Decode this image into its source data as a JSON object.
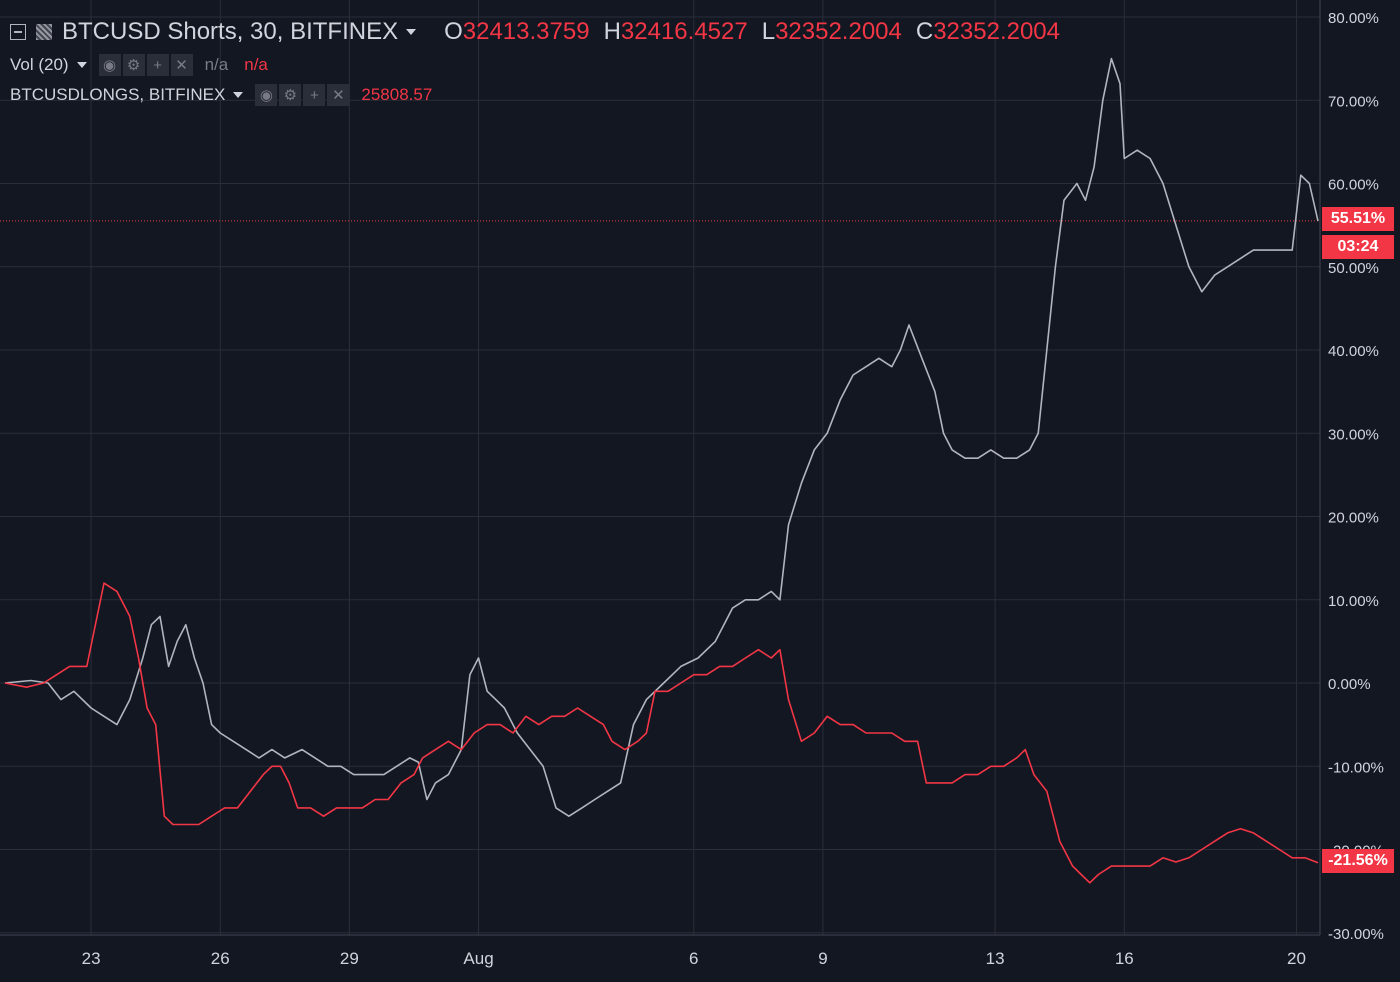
{
  "legend": {
    "symbol": "BTCUSD Shorts, 30, BITFINEX",
    "open_label": "O",
    "open": "32413.3759",
    "high_label": "H",
    "high": "32416.4527",
    "low_label": "L",
    "low": "32352.2004",
    "close_label": "C",
    "close": "32352.2004",
    "vol_label": "Vol (20)",
    "vol_value": "n/a",
    "vol_value2": "n/a",
    "longs_label": "BTCUSDLONGS, BITFINEX",
    "longs_value": "25808.57"
  },
  "badges": {
    "shorts_value": "55.51%",
    "countdown": "03:24",
    "longs_value": "-21.56%"
  },
  "icons": {
    "collapse": "minus-square-icon",
    "symbol": "symbol-hatch-icon",
    "dropdown": "caret-down-icon",
    "eye": "eye-icon",
    "gear": "gear-icon",
    "plus": "plus-icon",
    "close": "close-icon"
  },
  "colors": {
    "background": "#131722",
    "grid": "#2a2e39",
    "shorts_series": "#b2b5be",
    "longs_series": "#f23645",
    "text": "#d1d4dc"
  },
  "chart_data": {
    "type": "line",
    "x_unit": "trading days from first tick (23 = day 2)",
    "x_ticks": [
      {
        "label": "23",
        "x": 2
      },
      {
        "label": "26",
        "x": 5
      },
      {
        "label": "29",
        "x": 8
      },
      {
        "label": "Aug",
        "x": 11
      },
      {
        "label": "6",
        "x": 16
      },
      {
        "label": "9",
        "x": 19
      },
      {
        "label": "13",
        "x": 23
      },
      {
        "label": "16",
        "x": 26
      },
      {
        "label": "20",
        "x": 30
      }
    ],
    "y_ticks": [
      "80.00%",
      "70.00%",
      "60.00%",
      "50.00%",
      "40.00%",
      "30.00%",
      "20.00%",
      "10.00%",
      "0.00%",
      "-10.00%",
      "-20.00%",
      "-30.00%"
    ],
    "y_tick_values": [
      80,
      70,
      60,
      50,
      40,
      30,
      20,
      10,
      0,
      -10,
      -20,
      -30
    ],
    "ylim": [
      -30,
      80
    ],
    "xlim": [
      0,
      31
    ],
    "grid": true,
    "scale": "percent",
    "series": [
      {
        "name": "BTCUSD Shorts",
        "points": [
          [
            0,
            0
          ],
          [
            0.6,
            0.3
          ],
          [
            1.0,
            0
          ],
          [
            1.3,
            -2
          ],
          [
            1.6,
            -1
          ],
          [
            2.0,
            -3
          ],
          [
            2.3,
            -4
          ],
          [
            2.6,
            -5
          ],
          [
            2.9,
            -2
          ],
          [
            3.2,
            3
          ],
          [
            3.4,
            7
          ],
          [
            3.6,
            8
          ],
          [
            3.8,
            2
          ],
          [
            4.0,
            5
          ],
          [
            4.2,
            7
          ],
          [
            4.4,
            3
          ],
          [
            4.6,
            0
          ],
          [
            4.8,
            -5
          ],
          [
            5.0,
            -6
          ],
          [
            5.3,
            -7
          ],
          [
            5.6,
            -8
          ],
          [
            5.9,
            -9
          ],
          [
            6.2,
            -8
          ],
          [
            6.5,
            -9
          ],
          [
            6.9,
            -8
          ],
          [
            7.2,
            -9
          ],
          [
            7.5,
            -10
          ],
          [
            7.8,
            -10
          ],
          [
            8.1,
            -11
          ],
          [
            8.4,
            -11
          ],
          [
            8.8,
            -11
          ],
          [
            9.1,
            -10
          ],
          [
            9.4,
            -9
          ],
          [
            9.6,
            -9.5
          ],
          [
            9.8,
            -14
          ],
          [
            10.0,
            -12
          ],
          [
            10.3,
            -11
          ],
          [
            10.6,
            -8
          ],
          [
            10.8,
            1
          ],
          [
            11.0,
            3
          ],
          [
            11.2,
            -1
          ],
          [
            11.4,
            -2
          ],
          [
            11.6,
            -3
          ],
          [
            11.9,
            -6
          ],
          [
            12.2,
            -8
          ],
          [
            12.5,
            -10
          ],
          [
            12.8,
            -15
          ],
          [
            13.1,
            -16
          ],
          [
            13.4,
            -15
          ],
          [
            13.7,
            -14
          ],
          [
            14.0,
            -13
          ],
          [
            14.3,
            -12
          ],
          [
            14.6,
            -5
          ],
          [
            14.9,
            -2
          ],
          [
            15.3,
            0
          ],
          [
            15.7,
            2
          ],
          [
            16.1,
            3
          ],
          [
            16.5,
            5
          ],
          [
            16.9,
            9
          ],
          [
            17.2,
            10
          ],
          [
            17.5,
            10
          ],
          [
            17.8,
            11
          ],
          [
            18.0,
            10
          ],
          [
            18.2,
            19
          ],
          [
            18.5,
            24
          ],
          [
            18.8,
            28
          ],
          [
            19.1,
            30
          ],
          [
            19.4,
            34
          ],
          [
            19.7,
            37
          ],
          [
            20.0,
            38
          ],
          [
            20.3,
            39
          ],
          [
            20.6,
            38
          ],
          [
            20.8,
            40
          ],
          [
            21.0,
            43
          ],
          [
            21.3,
            39
          ],
          [
            21.6,
            35
          ],
          [
            21.8,
            30
          ],
          [
            22.0,
            28
          ],
          [
            22.3,
            27
          ],
          [
            22.6,
            27
          ],
          [
            22.9,
            28
          ],
          [
            23.2,
            27
          ],
          [
            23.5,
            27
          ],
          [
            23.8,
            28
          ],
          [
            24.0,
            30
          ],
          [
            24.2,
            40
          ],
          [
            24.4,
            50
          ],
          [
            24.6,
            58
          ],
          [
            24.9,
            60
          ],
          [
            25.1,
            58
          ],
          [
            25.3,
            62
          ],
          [
            25.5,
            70
          ],
          [
            25.7,
            75
          ],
          [
            25.9,
            72
          ],
          [
            26.0,
            63
          ],
          [
            26.3,
            64
          ],
          [
            26.6,
            63
          ],
          [
            26.9,
            60
          ],
          [
            27.2,
            55
          ],
          [
            27.5,
            50
          ],
          [
            27.8,
            47
          ],
          [
            28.1,
            49
          ],
          [
            28.4,
            50
          ],
          [
            28.7,
            51
          ],
          [
            29.0,
            52
          ],
          [
            29.3,
            52
          ],
          [
            29.6,
            52
          ],
          [
            29.9,
            52
          ],
          [
            30.1,
            61
          ],
          [
            30.3,
            60
          ],
          [
            30.5,
            55.5
          ]
        ]
      },
      {
        "name": "BTCUSDLONGS, BITFINEX",
        "points": [
          [
            0,
            0
          ],
          [
            0.5,
            -0.5
          ],
          [
            0.9,
            0
          ],
          [
            1.2,
            1
          ],
          [
            1.5,
            2
          ],
          [
            1.9,
            2
          ],
          [
            2.1,
            7
          ],
          [
            2.3,
            12
          ],
          [
            2.6,
            11
          ],
          [
            2.9,
            8
          ],
          [
            3.1,
            3
          ],
          [
            3.3,
            -3
          ],
          [
            3.5,
            -5
          ],
          [
            3.7,
            -16
          ],
          [
            3.9,
            -17
          ],
          [
            4.2,
            -17
          ],
          [
            4.5,
            -17
          ],
          [
            4.8,
            -16
          ],
          [
            5.1,
            -15
          ],
          [
            5.4,
            -15
          ],
          [
            5.7,
            -13
          ],
          [
            6.0,
            -11
          ],
          [
            6.2,
            -10
          ],
          [
            6.4,
            -10
          ],
          [
            6.6,
            -12
          ],
          [
            6.8,
            -15
          ],
          [
            7.1,
            -15
          ],
          [
            7.4,
            -16
          ],
          [
            7.7,
            -15
          ],
          [
            8.0,
            -15
          ],
          [
            8.3,
            -15
          ],
          [
            8.6,
            -14
          ],
          [
            8.9,
            -14
          ],
          [
            9.2,
            -12
          ],
          [
            9.5,
            -11
          ],
          [
            9.7,
            -9
          ],
          [
            10.0,
            -8
          ],
          [
            10.3,
            -7
          ],
          [
            10.6,
            -8
          ],
          [
            10.9,
            -6
          ],
          [
            11.2,
            -5
          ],
          [
            11.5,
            -5
          ],
          [
            11.8,
            -6
          ],
          [
            12.1,
            -4
          ],
          [
            12.4,
            -5
          ],
          [
            12.7,
            -4
          ],
          [
            13.0,
            -4
          ],
          [
            13.3,
            -3
          ],
          [
            13.6,
            -4
          ],
          [
            13.9,
            -5
          ],
          [
            14.1,
            -7
          ],
          [
            14.4,
            -8
          ],
          [
            14.7,
            -7
          ],
          [
            14.9,
            -6
          ],
          [
            15.1,
            -1
          ],
          [
            15.4,
            -1
          ],
          [
            15.7,
            0
          ],
          [
            16.0,
            1
          ],
          [
            16.3,
            1
          ],
          [
            16.6,
            2
          ],
          [
            16.9,
            2
          ],
          [
            17.2,
            3
          ],
          [
            17.5,
            4
          ],
          [
            17.8,
            3
          ],
          [
            18.0,
            4
          ],
          [
            18.2,
            -2
          ],
          [
            18.5,
            -7
          ],
          [
            18.8,
            -6
          ],
          [
            19.1,
            -4
          ],
          [
            19.4,
            -5
          ],
          [
            19.7,
            -5
          ],
          [
            20.0,
            -6
          ],
          [
            20.3,
            -6
          ],
          [
            20.6,
            -6
          ],
          [
            20.9,
            -7
          ],
          [
            21.2,
            -7
          ],
          [
            21.4,
            -12
          ],
          [
            21.7,
            -12
          ],
          [
            22.0,
            -12
          ],
          [
            22.3,
            -11
          ],
          [
            22.6,
            -11
          ],
          [
            22.9,
            -10
          ],
          [
            23.2,
            -10
          ],
          [
            23.5,
            -9
          ],
          [
            23.7,
            -8
          ],
          [
            23.9,
            -11
          ],
          [
            24.2,
            -13
          ],
          [
            24.5,
            -19
          ],
          [
            24.8,
            -22
          ],
          [
            25.0,
            -23
          ],
          [
            25.2,
            -24
          ],
          [
            25.4,
            -23
          ],
          [
            25.7,
            -22
          ],
          [
            26.0,
            -22
          ],
          [
            26.3,
            -22
          ],
          [
            26.6,
            -22
          ],
          [
            26.9,
            -21
          ],
          [
            27.2,
            -21.5
          ],
          [
            27.5,
            -21
          ],
          [
            27.8,
            -20
          ],
          [
            28.1,
            -19
          ],
          [
            28.4,
            -18
          ],
          [
            28.7,
            -17.5
          ],
          [
            29.0,
            -18
          ],
          [
            29.3,
            -19
          ],
          [
            29.6,
            -20
          ],
          [
            29.9,
            -21
          ],
          [
            30.2,
            -21
          ],
          [
            30.5,
            -21.6
          ]
        ]
      }
    ],
    "last_value_line": 55.51
  }
}
